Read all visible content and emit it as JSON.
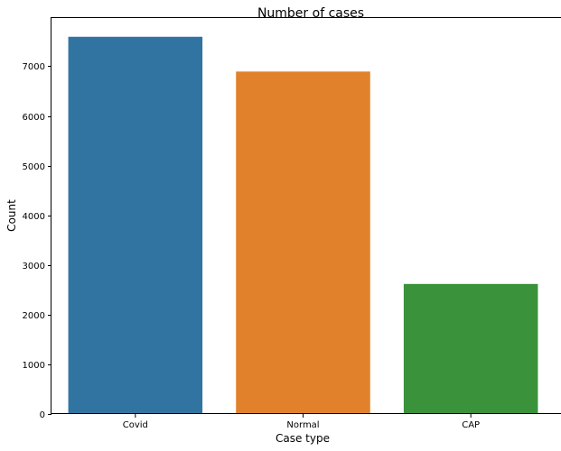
{
  "chart_data": {
    "type": "bar",
    "title": "Number of cases",
    "xlabel": "Case type",
    "ylabel": "Count",
    "categories": [
      "Covid",
      "Normal",
      "CAP"
    ],
    "values": [
      7593,
      6893,
      2618
    ],
    "colors": [
      "#3274a1",
      "#e1812c",
      "#3a923a"
    ],
    "ylim": [
      0,
      7970
    ],
    "yticks": [
      0,
      1000,
      2000,
      3000,
      4000,
      5000,
      6000,
      7000
    ],
    "ytick_labels": [
      "0",
      "1000",
      "2000",
      "3000",
      "4000",
      "5000",
      "6000",
      "7000"
    ],
    "grid": false,
    "legend": "none"
  }
}
